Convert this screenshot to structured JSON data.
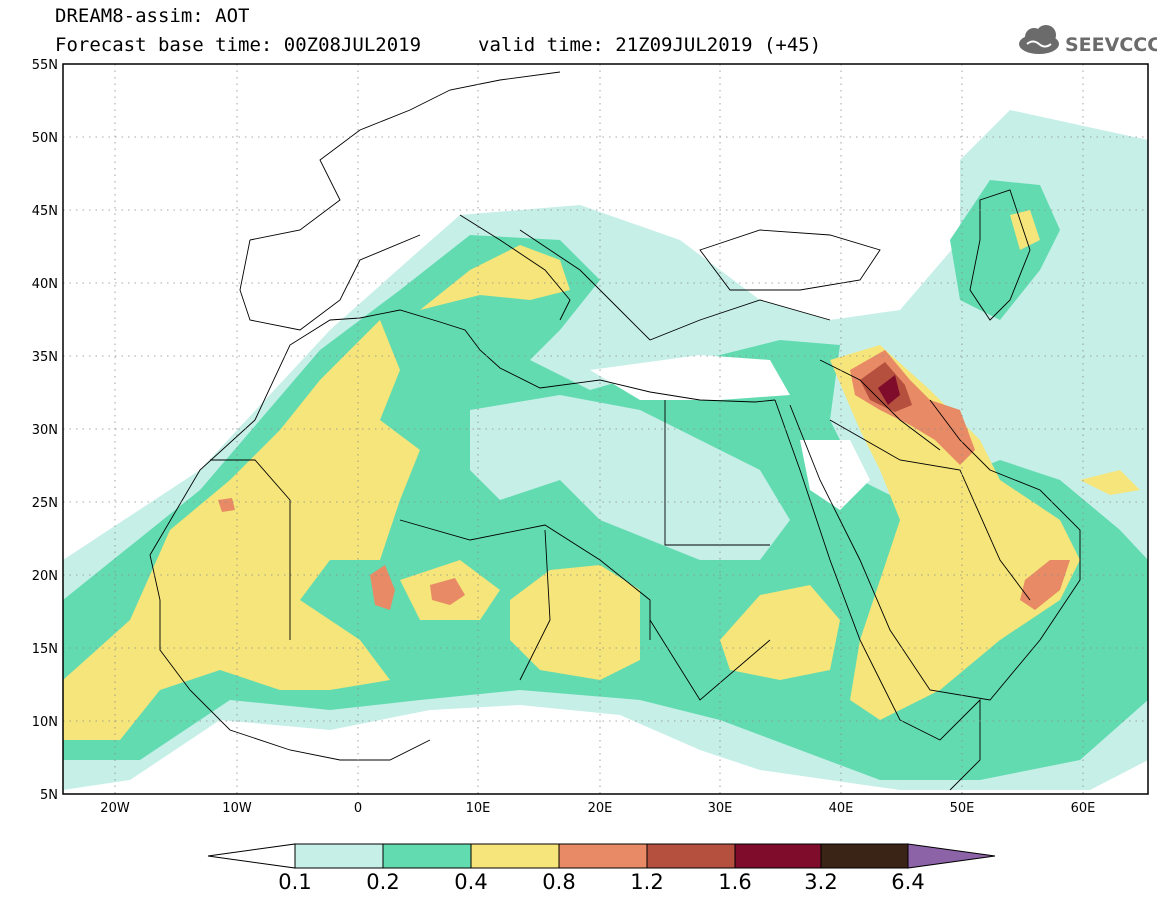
{
  "header": {
    "line1": "DREAM8-assim: AOT",
    "base_time": "Forecast base time: 00Z08JUL2019",
    "valid_time": "valid time: 21Z09JUL2019 (+45)"
  },
  "logo": {
    "text": "SEEVCCC",
    "icon": "cloud-icon"
  },
  "map": {
    "lat_labels": [
      "55N",
      "50N",
      "45N",
      "40N",
      "35N",
      "30N",
      "25N",
      "20N",
      "15N",
      "10N",
      "5N"
    ],
    "lon_labels": [
      "20W",
      "10W",
      "0",
      "10E",
      "20E",
      "30E",
      "40E",
      "50E",
      "60E"
    ],
    "extent": {
      "lon": [
        -25,
        65
      ],
      "lat": [
        5,
        55
      ]
    }
  },
  "colorbar": {
    "labels": [
      "0.1",
      "0.2",
      "0.4",
      "0.8",
      "1.2",
      "1.6",
      "3.2",
      "6.4"
    ],
    "colors": [
      "#ffffff",
      "#c6efe8",
      "#62dbb1",
      "#f5e57a",
      "#e88a66",
      "#b6503e",
      "#7e0c2a",
      "#3a2416",
      "#8d63a8"
    ]
  }
}
